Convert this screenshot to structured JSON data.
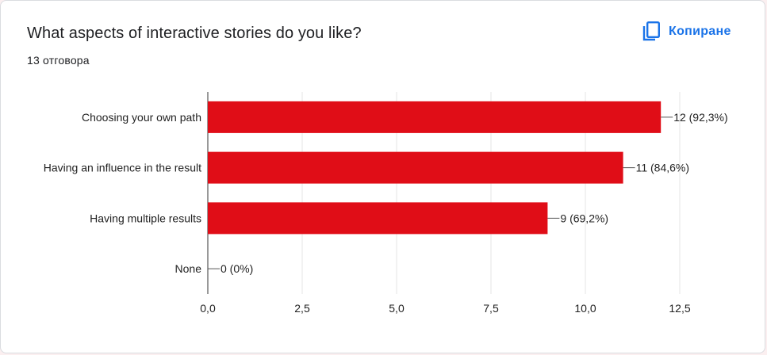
{
  "header": {
    "question": "What aspects of interactive stories do you like?",
    "responses": "13 отговора",
    "copy_label": "Копиране",
    "copy_icon": "copy-icon"
  },
  "colors": {
    "bar": "#e00d17",
    "accent": "#1a73e8",
    "grid": "#e6e6e6",
    "axis": "#333333",
    "text": "#222222"
  },
  "chart_data": {
    "type": "bar",
    "orientation": "horizontal",
    "categories": [
      "Choosing your own path",
      "Having an influence in the result",
      "Having multiple results",
      "None"
    ],
    "values": [
      12,
      11,
      9,
      0
    ],
    "data_labels": [
      "12 (92,3%)",
      "11 (84,6%)",
      "9 (69,2%)",
      "0 (0%)"
    ],
    "xlim": [
      0,
      12.5
    ],
    "xticks": [
      0,
      2.5,
      5,
      7.5,
      10,
      12.5
    ],
    "xtick_labels": [
      "0,0",
      "2,5",
      "5,0",
      "7,5",
      "10,0",
      "12,5"
    ],
    "grid": true,
    "legend": "none",
    "title": "",
    "xlabel": "",
    "ylabel": ""
  }
}
